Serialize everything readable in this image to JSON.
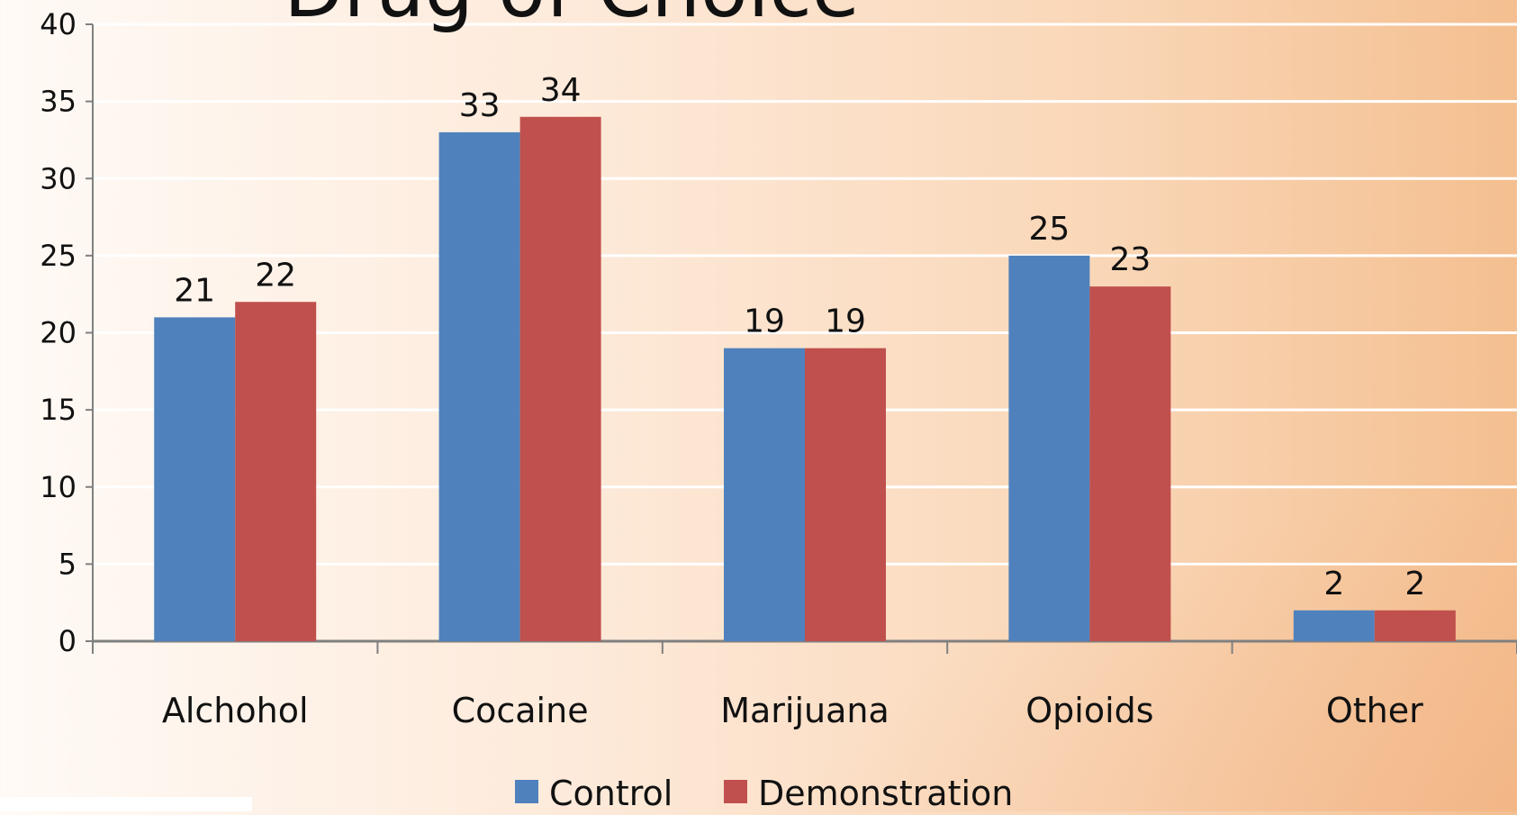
{
  "chart_data": {
    "type": "bar",
    "title": "Drug of Choice",
    "categories": [
      "Alchohol",
      "Cocaine",
      "Marijuana",
      "Opioids",
      "Other"
    ],
    "series": [
      {
        "name": "Control",
        "values": [
          21,
          33,
          19,
          25,
          2
        ],
        "color": "#4f81bd"
      },
      {
        "name": "Demonstration",
        "values": [
          22,
          34,
          19,
          23,
          2
        ],
        "color": "#c0504d"
      }
    ],
    "ylim": [
      0,
      40
    ],
    "yticks": [
      0,
      5,
      10,
      15,
      20,
      25,
      30,
      35,
      40
    ],
    "grid": true,
    "legend": "bottom"
  }
}
